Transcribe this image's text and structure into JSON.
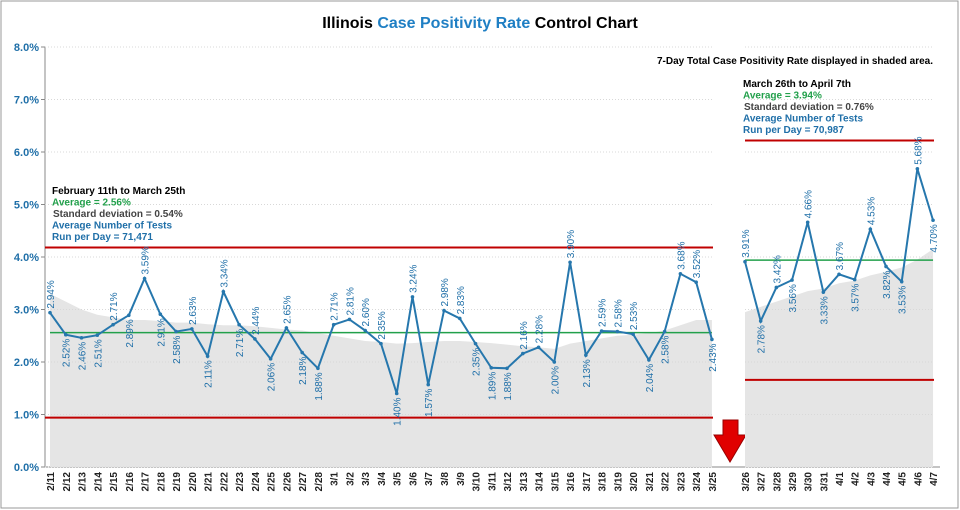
{
  "chart_data": {
    "type": "line",
    "title_parts": [
      "Illinois ",
      "Case Positivity Rate",
      " Control Chart"
    ],
    "note": "7-Day Total Case Positivity Rate displayed in shaded area.",
    "ylim": [
      0,
      8
    ],
    "yticks": [
      {
        "value": 0,
        "label": "0.0%"
      },
      {
        "value": 1,
        "label": "1.0%"
      },
      {
        "value": 2,
        "label": "2.0%"
      },
      {
        "value": 3,
        "label": "3.0%"
      },
      {
        "value": 4,
        "label": "4.0%"
      },
      {
        "value": 5,
        "label": "5.0%"
      },
      {
        "value": 6,
        "label": "6.0%"
      },
      {
        "value": 7,
        "label": "7.0%"
      },
      {
        "value": 8,
        "label": "8.0%"
      }
    ],
    "color": "#2677ad",
    "mean_color": "#22a04b",
    "limit_color": "#c00000",
    "shade_color": "#e5e5e5",
    "panels": [
      {
        "period": "February 11th to March 25th",
        "mean": 2.56,
        "mean_label": "Average = 2.56%",
        "sd_label": "Standard deviation = 0.54%",
        "tests_label": "Average Number of Tests",
        "run_label": "Run per Day = 71,471",
        "ucl": 4.18,
        "lcl": 0.94,
        "categories": [
          "2/11",
          "2/12",
          "2/13",
          "2/14",
          "2/15",
          "2/16",
          "2/17",
          "2/18",
          "2/19",
          "2/20",
          "2/21",
          "2/22",
          "2/23",
          "2/24",
          "2/25",
          "2/26",
          "2/27",
          "2/28",
          "3/1",
          "3/2",
          "3/3",
          "3/4",
          "3/5",
          "3/6",
          "3/7",
          "3/8",
          "3/9",
          "3/10",
          "3/11",
          "3/12",
          "3/13",
          "3/14",
          "3/15",
          "3/16",
          "3/17",
          "3/18",
          "3/19",
          "3/20",
          "3/21",
          "3/22",
          "3/23",
          "3/24",
          "3/25"
        ],
        "values": [
          2.94,
          2.52,
          2.46,
          2.51,
          2.71,
          2.89,
          3.59,
          2.91,
          2.58,
          2.63,
          2.11,
          3.34,
          2.71,
          2.44,
          2.06,
          2.65,
          2.18,
          1.88,
          2.71,
          2.81,
          2.6,
          2.35,
          1.4,
          3.24,
          1.57,
          2.98,
          2.83,
          2.35,
          1.89,
          1.88,
          2.16,
          2.28,
          2.0,
          3.9,
          2.13,
          2.59,
          2.58,
          2.53,
          2.04,
          2.58,
          3.68,
          3.52,
          2.43
        ],
        "value_labels": [
          "2.94%",
          "2.52%",
          "2.46%",
          "2.51%",
          "2.71%",
          "2.89%",
          "3.59%",
          "2.91%",
          "2.58%",
          "2.63%",
          "2.11%",
          "3.34%",
          "2.71%",
          "2.44%",
          "2.06%",
          "2.65%",
          "2.18%",
          "1.88%",
          "2.71%",
          "2.81%",
          "2.60%",
          "2.35%",
          "1.40%",
          "3.24%",
          "1.57%",
          "2.98%",
          "2.83%",
          "2.35%",
          "1.89%",
          "1.88%",
          "2.16%",
          "2.28%",
          "2.00%",
          "3.90%",
          "2.13%",
          "2.59%",
          "2.58%",
          "2.53%",
          "2.04%",
          "2.58%",
          "3.68%",
          "3.52%",
          "2.43%"
        ],
        "shaded": [
          3.3,
          3.15,
          3.0,
          2.9,
          2.85,
          2.8,
          2.8,
          2.78,
          2.75,
          2.75,
          2.72,
          2.7,
          2.7,
          2.68,
          2.65,
          2.62,
          2.6,
          2.55,
          2.5,
          2.45,
          2.4,
          2.38,
          2.35,
          2.36,
          2.38,
          2.4,
          2.4,
          2.38,
          2.36,
          2.33,
          2.3,
          2.28,
          2.25,
          2.35,
          2.4,
          2.45,
          2.5,
          2.52,
          2.55,
          2.6,
          2.7,
          2.8,
          2.8
        ]
      },
      {
        "period": "March 26th to April 7th",
        "mean": 3.94,
        "mean_label": "Average = 3.94%",
        "sd_label": "Standard deviation = 0.76%",
        "tests_label": "Average Number of Tests",
        "run_label": "Run per Day = 70,987",
        "ucl": 6.22,
        "lcl": 1.66,
        "categories": [
          "3/26",
          "3/27",
          "3/28",
          "3/29",
          "3/30",
          "3/31",
          "4/1",
          "4/2",
          "4/3",
          "4/4",
          "4/5",
          "4/6",
          "4/7"
        ],
        "values": [
          3.91,
          2.78,
          3.42,
          3.56,
          4.66,
          3.33,
          3.67,
          3.57,
          4.53,
          3.82,
          3.53,
          5.68,
          4.7
        ],
        "value_labels": [
          "3.91%",
          "2.78%",
          "3.42%",
          "3.56%",
          "4.66%",
          "3.33%",
          "3.67%",
          "3.57%",
          "4.53%",
          "3.82%",
          "3.53%",
          "5.68%",
          "4.70%"
        ],
        "shaded": [
          2.95,
          3.05,
          3.15,
          3.25,
          3.35,
          3.4,
          3.5,
          3.55,
          3.65,
          3.72,
          3.8,
          3.95,
          4.15
        ]
      }
    ]
  }
}
